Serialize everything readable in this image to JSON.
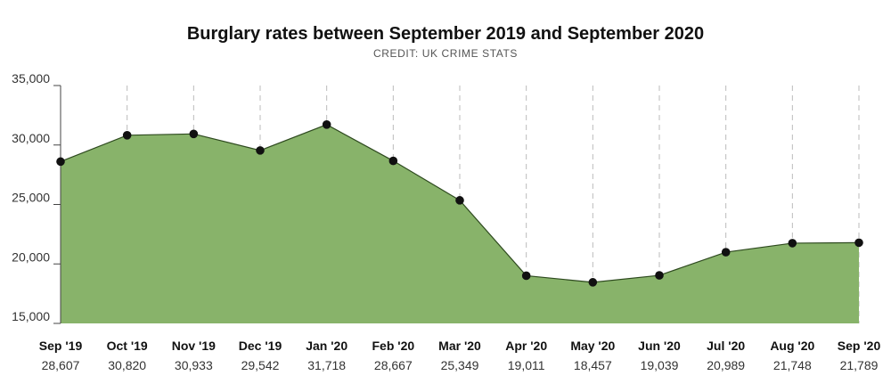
{
  "chart_data": {
    "type": "area",
    "title": "Burglary rates between September 2019 and September 2020",
    "subtitle": "CREDIT: UK CRIME STATS",
    "xlabel": "",
    "ylabel": "",
    "categories": [
      "Sep '19",
      "Oct '19",
      "Nov '19",
      "Dec '19",
      "Jan '20",
      "Feb '20",
      "Mar '20",
      "Apr '20",
      "May '20",
      "Jun '20",
      "Jul '20",
      "Aug '20",
      "Sep '20"
    ],
    "values": [
      28607,
      30820,
      30933,
      29542,
      31718,
      28667,
      25349,
      19011,
      18457,
      19039,
      20989,
      21748,
      21789
    ],
    "value_labels": [
      "28,607",
      "30,820",
      "30,933",
      "29,542",
      "31,718",
      "28,667",
      "25,349",
      "19,011",
      "18,457",
      "19,039",
      "20,989",
      "21,748",
      "21,789"
    ],
    "yticks": [
      15000,
      20000,
      25000,
      30000,
      35000
    ],
    "ytick_labels": [
      "15,000",
      "20,000",
      "25,000",
      "30,000",
      "35,000"
    ],
    "ylim": [
      15000,
      35000
    ],
    "grid": "vertical dashed",
    "legend": "none",
    "colors": {
      "fill": "#88b36a",
      "line": "#2e4a1f",
      "marker": "#111111",
      "grid": "#bbbbbb",
      "axis": "#444444"
    }
  }
}
